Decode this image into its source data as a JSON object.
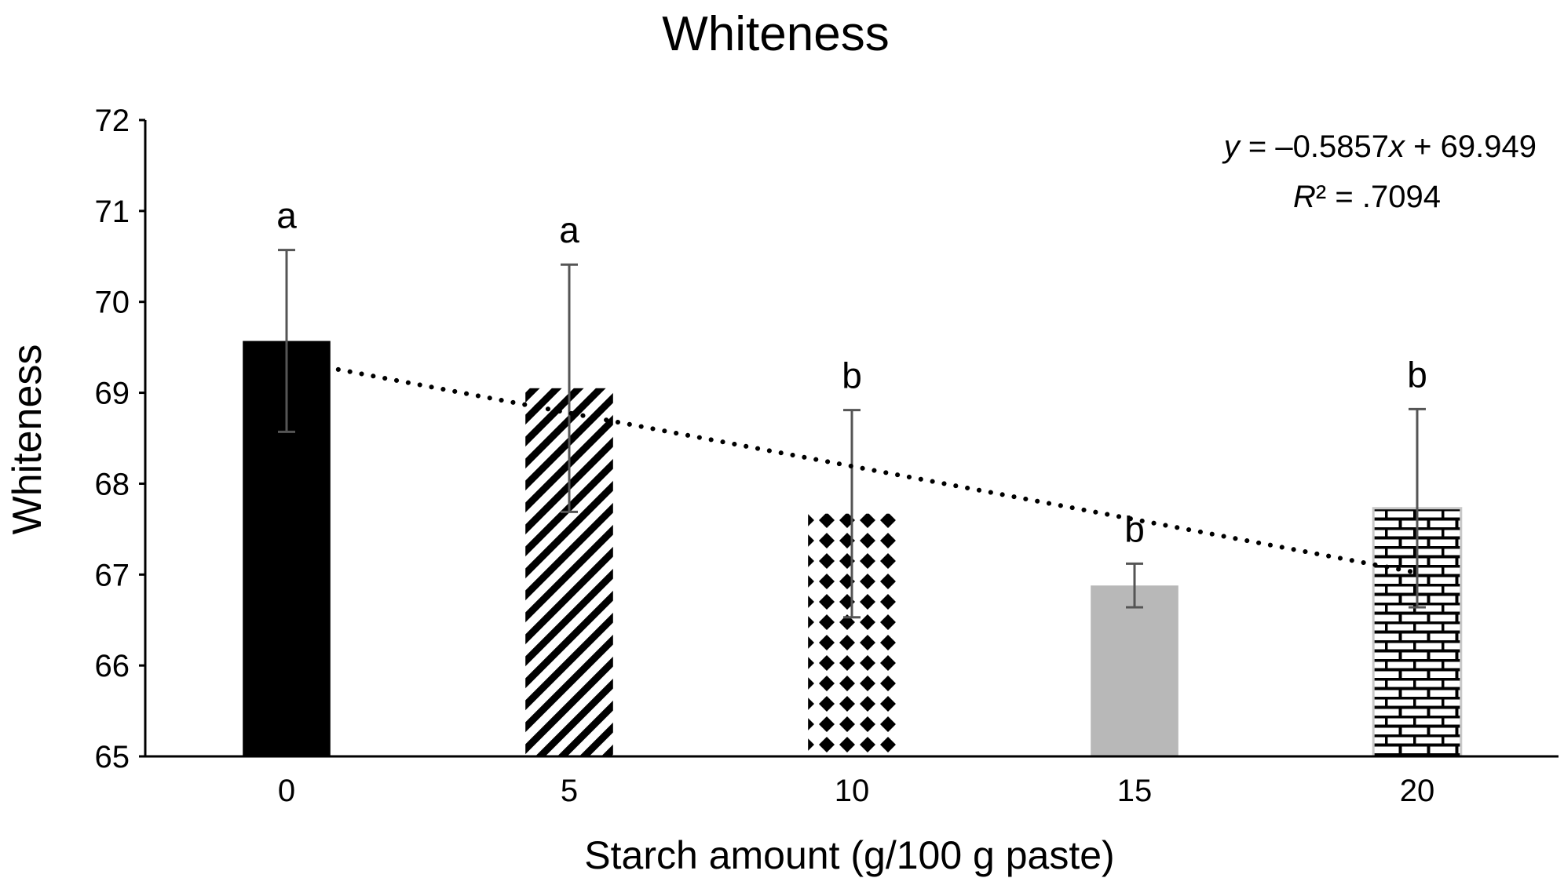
{
  "chart_data": {
    "type": "bar",
    "title": "Whiteness",
    "xlabel": "Starch amount (g/100 g paste)",
    "ylabel": "Whiteness",
    "categories": [
      "0",
      "5",
      "10",
      "15",
      "20"
    ],
    "values": [
      69.57,
      69.05,
      67.67,
      66.88,
      67.73
    ],
    "errors": [
      1.0,
      1.36,
      1.14,
      0.24,
      1.09
    ],
    "significance_letters": [
      "a",
      "a",
      "b",
      "b",
      "b"
    ],
    "fills": [
      "solid-black",
      "diagonal-stripes",
      "black-dots",
      "solid-gray",
      "brick"
    ],
    "ylim": [
      65,
      72
    ],
    "yticks": [
      "65",
      "66",
      "67",
      "68",
      "69",
      "70",
      "71",
      "72"
    ],
    "grid": false,
    "legend": "none",
    "trendline": {
      "style": "dotted",
      "slope": -0.5857,
      "intercept": 69.949,
      "equation_text": "y = –0.5857x + 69.949",
      "r2_text": "R² = .7094"
    },
    "colors": {
      "bar_black": "#000000",
      "bar_gray": "#b8b8b8",
      "error_bar": "#555555",
      "axis": "#000000"
    }
  }
}
